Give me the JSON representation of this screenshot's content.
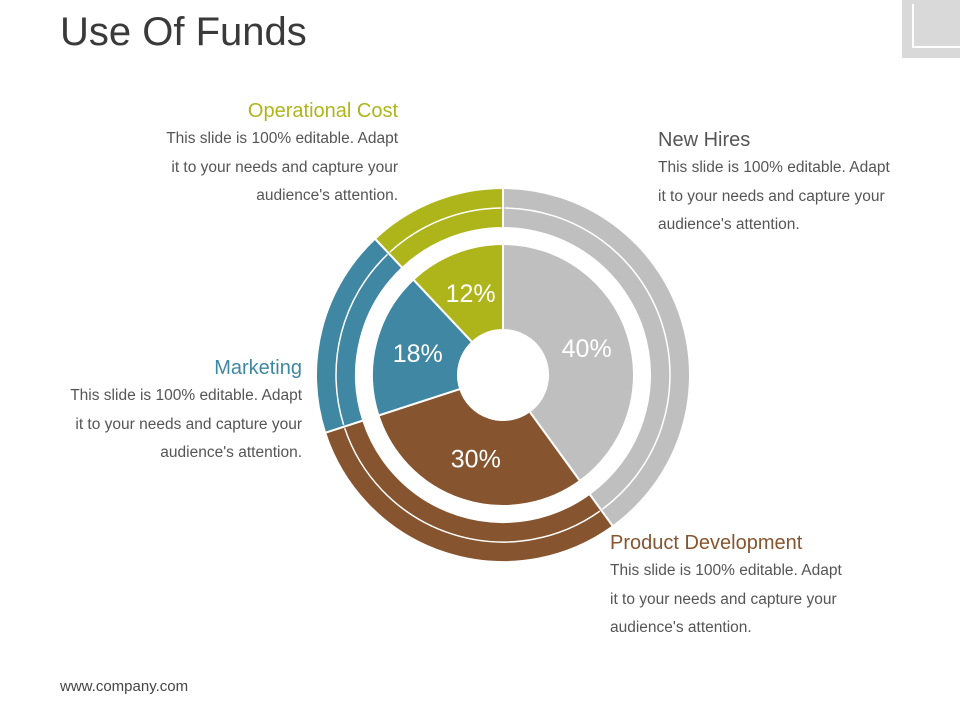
{
  "slide": {
    "title": "Use Of Funds",
    "footer": "www.company.com"
  },
  "colors": {
    "new_hires": "#bfbfbf",
    "product_development": "#86542e",
    "marketing": "#3f87a3",
    "operational_cost": "#aeb51a",
    "title": "#3a3a3a",
    "body_text": "#555555"
  },
  "callouts": {
    "operational_cost": {
      "heading": "Operational Cost",
      "desc_line1": "This slide is 100% editable. Adapt",
      "desc_line2": "it to your needs and capture your",
      "desc_line3": "audience's attention."
    },
    "new_hires": {
      "heading": "New Hires",
      "desc_line1": "This slide is 100% editable. Adapt",
      "desc_line2": "it to your needs and capture your",
      "desc_line3": "audience's attention."
    },
    "marketing": {
      "heading": "Marketing",
      "desc_line1": "This slide is 100% editable. Adapt",
      "desc_line2": "it to your needs and capture your",
      "desc_line3": "audience's attention."
    },
    "product_development": {
      "heading": "Product Development",
      "desc_line1": "This slide is 100% editable. Adapt",
      "desc_line2": "it to your needs and capture your",
      "desc_line3": "audience's attention."
    }
  },
  "chart_data": {
    "type": "pie",
    "title": "Use Of Funds",
    "categories": [
      "New Hires",
      "Product Development",
      "Marketing",
      "Operational Cost"
    ],
    "values": [
      40,
      30,
      18,
      12
    ],
    "labels": [
      "40%",
      "30%",
      "18%",
      "12%"
    ],
    "colors": [
      "#bfbfbf",
      "#86542e",
      "#3f87a3",
      "#aeb51a"
    ],
    "start": "12 o'clock",
    "direction": "clockwise",
    "style": "donut with outer ring"
  }
}
